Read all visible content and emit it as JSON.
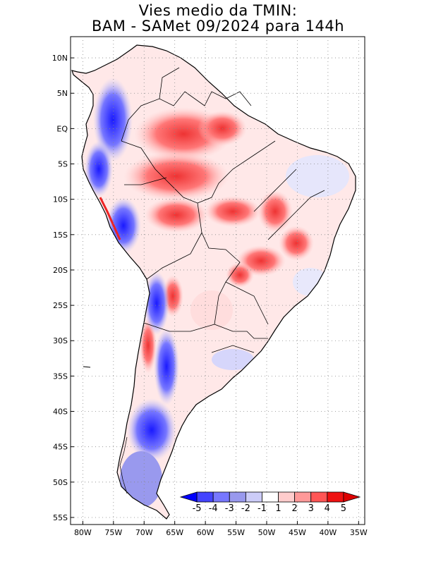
{
  "title": {
    "line1": "Vies medio da TMIN:",
    "line2": "BAM - SAMet 09/2024  para 144h"
  },
  "map": {
    "region": "South America",
    "lat_labels": [
      "10N",
      "5N",
      "EQ",
      "5S",
      "10S",
      "15S",
      "20S",
      "25S",
      "30S",
      "35S",
      "40S",
      "45S",
      "50S",
      "55S"
    ],
    "lon_labels": [
      "80W",
      "75W",
      "70W",
      "65W",
      "60W",
      "55W",
      "50W",
      "45W",
      "40W",
      "35W"
    ],
    "lat_values": [
      10,
      5,
      0,
      -5,
      -10,
      -15,
      -20,
      -25,
      -30,
      -35,
      -40,
      -45,
      -50,
      -55
    ],
    "lon_values": [
      -80,
      -75,
      -70,
      -65,
      -60,
      -55,
      -50,
      -45,
      -40,
      -35
    ],
    "lat_range": [
      -56,
      13
    ],
    "lon_range": [
      -82,
      -34
    ]
  },
  "colorbar": {
    "labels": [
      "-5",
      "-4",
      "-3",
      "-2",
      "-1",
      "1",
      "2",
      "3",
      "4",
      "5"
    ],
    "colors": [
      "#0000ff",
      "#4444ff",
      "#7777ff",
      "#9999ee",
      "#ccccf8",
      "#ffffff",
      "#ffcccc",
      "#ff9999",
      "#ff5555",
      "#ee1111",
      "#dd0000"
    ]
  }
}
